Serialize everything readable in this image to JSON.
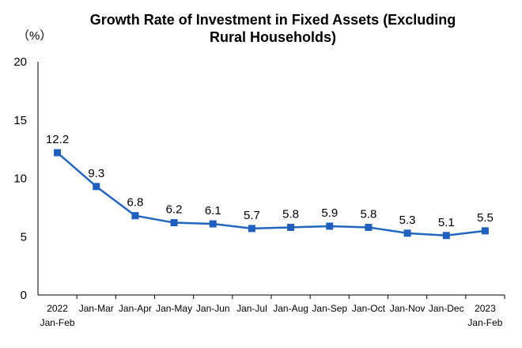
{
  "chart_data": {
    "type": "line",
    "title_lines": [
      "Growth Rate of Investment in Fixed Assets (Excluding",
      "Rural Households)"
    ],
    "ylabel": "（%）",
    "xlabel": "",
    "ylim": [
      0,
      20
    ],
    "yticks": [
      "0",
      "5",
      "10",
      "15",
      "20"
    ],
    "categories": [
      {
        "line1": "2022",
        "line2": "Jan-Feb"
      },
      {
        "line1": "Jan-Mar",
        "line2": ""
      },
      {
        "line1": "Jan-Apr",
        "line2": ""
      },
      {
        "line1": "Jan-May",
        "line2": ""
      },
      {
        "line1": "Jan-Jun",
        "line2": ""
      },
      {
        "line1": "Jan-Jul",
        "line2": ""
      },
      {
        "line1": "Jan-Aug",
        "line2": ""
      },
      {
        "line1": "Jan-Sep",
        "line2": ""
      },
      {
        "line1": "Jan-Oct",
        "line2": ""
      },
      {
        "line1": "Jan-Nov",
        "line2": ""
      },
      {
        "line1": "Jan-Dec",
        "line2": ""
      },
      {
        "line1": "2023",
        "line2": "Jan-Feb"
      }
    ],
    "values": [
      12.2,
      9.3,
      6.8,
      6.2,
      6.1,
      5.7,
      5.8,
      5.9,
      5.8,
      5.3,
      5.1,
      5.5
    ],
    "value_labels": [
      "12.2",
      "9.3",
      "6.8",
      "6.2",
      "6.1",
      "5.7",
      "5.8",
      "5.9",
      "5.8",
      "5.3",
      "5.1",
      "5.5"
    ],
    "grid": false,
    "legend": "none",
    "colors": {
      "line": "#2167C0",
      "marker": "#1F5FBF",
      "axis": "#000000"
    }
  }
}
